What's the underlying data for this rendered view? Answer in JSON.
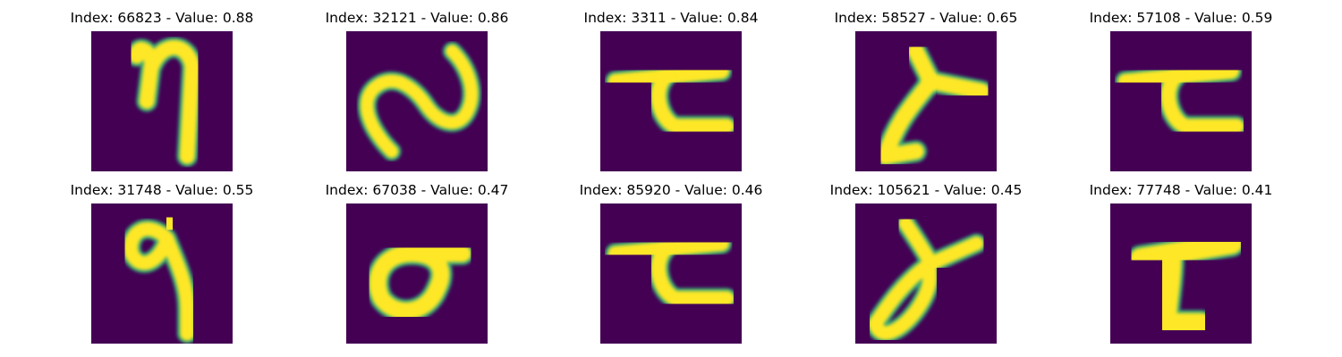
{
  "colors": {
    "background": "#440154",
    "stroke_core": "#fde725",
    "stroke_edge": "#35b779"
  },
  "panels": [
    {
      "title": "Index: 66823 - Value: 0.88",
      "glyph": "eta"
    },
    {
      "title": "Index: 32121 - Value: 0.86",
      "glyph": "wave"
    },
    {
      "title": "Index: 3311 - Value: 0.84",
      "glyph": "hook-bar"
    },
    {
      "title": "Index: 58527 - Value: 0.65",
      "glyph": "lambda"
    },
    {
      "title": "Index: 57108 - Value: 0.59",
      "glyph": "hook-bar"
    },
    {
      "title": "Index: 31748 - Value: 0.55",
      "glyph": "nine-loop"
    },
    {
      "title": "Index: 67038 - Value: 0.47",
      "glyph": "sigma"
    },
    {
      "title": "Index: 85920 - Value: 0.46",
      "glyph": "hook-bar"
    },
    {
      "title": "Index: 105621 - Value: 0.45",
      "glyph": "alpha"
    },
    {
      "title": "Index: 77748 - Value: 0.41",
      "glyph": "block-seven"
    }
  ]
}
